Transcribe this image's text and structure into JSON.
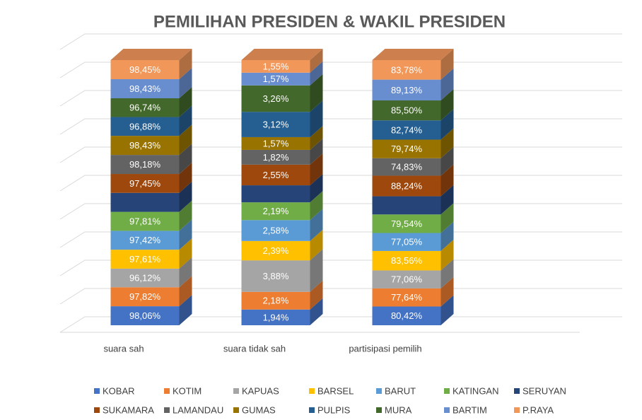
{
  "chart_data": {
    "type": "bar",
    "stacking": "percent",
    "three_d": true,
    "title": "PEMILIHAN PRESIDEN & WAKIL PRESIDEN",
    "categories": [
      "suara sah",
      "suara tidak sah",
      "partisipasi pemilih"
    ],
    "ylim": [
      0,
      100
    ],
    "yticks": [
      0,
      10,
      20,
      30,
      40,
      50,
      60,
      70,
      80,
      90,
      100
    ],
    "grid": true,
    "legend": "bottom",
    "series": [
      {
        "name": "KOBAR",
        "color": "#4472c4",
        "values": [
          98.06,
          1.94,
          80.42
        ],
        "value_labels": [
          "98,06%",
          "1,94%",
          "80,42%"
        ]
      },
      {
        "name": "KOTIM",
        "color": "#ed7d31",
        "values": [
          97.82,
          2.18,
          77.64
        ],
        "value_labels": [
          "97,82%",
          "2,18%",
          "77,64%"
        ]
      },
      {
        "name": "KAPUAS",
        "color": "#a5a5a5",
        "values": [
          96.12,
          3.88,
          77.06
        ],
        "value_labels": [
          "96,12%",
          "3,88%",
          "77,06%"
        ]
      },
      {
        "name": "BARSEL",
        "color": "#ffc000",
        "values": [
          97.61,
          2.39,
          83.56
        ],
        "value_labels": [
          "97,61%",
          "2,39%",
          "83,56%"
        ]
      },
      {
        "name": "BARUT",
        "color": "#5b9bd5",
        "values": [
          97.42,
          2.58,
          77.05
        ],
        "value_labels": [
          "97,42%",
          "2,58%",
          "77,05%"
        ]
      },
      {
        "name": "KATINGAN",
        "color": "#70ad47",
        "values": [
          97.81,
          2.19,
          79.54
        ],
        "value_labels": [
          "97,81%",
          "2,19%",
          "79,54%"
        ]
      },
      {
        "name": "SERUYAN",
        "color": "#264478",
        "values": [
          97.9,
          2.1,
          78
        ],
        "value_labels": [
          null,
          null,
          null
        ]
      },
      {
        "name": "SUKAMARA",
        "color": "#9e480e",
        "values": [
          97.45,
          2.55,
          88.24
        ],
        "value_labels": [
          "97,45%",
          "2,55%",
          "88,24%"
        ]
      },
      {
        "name": "LAMANDAU",
        "color": "#636363",
        "values": [
          98.18,
          1.82,
          74.83
        ],
        "value_labels": [
          "98,18%",
          "1,82%",
          "74,83%"
        ]
      },
      {
        "name": "GUMAS",
        "color": "#997300",
        "values": [
          98.43,
          1.57,
          79.74
        ],
        "value_labels": [
          "98,43%",
          "1,57%",
          "79,74%"
        ]
      },
      {
        "name": "PULPIS",
        "color": "#255e91",
        "values": [
          96.88,
          3.12,
          82.74
        ],
        "value_labels": [
          "96,88%",
          "3,12%",
          "82,74%"
        ]
      },
      {
        "name": "MURA",
        "color": "#43682b",
        "values": [
          96.74,
          3.26,
          85.5
        ],
        "value_labels": [
          "96,74%",
          "3,26%",
          "85,50%"
        ]
      },
      {
        "name": "BARTIM",
        "color": "#698ed0",
        "values": [
          98.43,
          1.57,
          89.13
        ],
        "value_labels": [
          "98,43%",
          "1,57%",
          "89,13%"
        ]
      },
      {
        "name": "P.RAYA",
        "color": "#f1975a",
        "values": [
          98.45,
          1.55,
          83.78
        ],
        "value_labels": [
          "98,45%",
          "1,55%",
          "83,78%"
        ]
      }
    ]
  }
}
